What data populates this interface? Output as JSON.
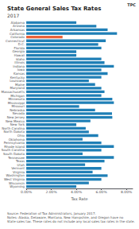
{
  "chart_data": {
    "type": "bar",
    "orientation": "horizontal",
    "title": "State General Sales Tax Rates",
    "subtitle": "2017",
    "xlabel": "Tax Rate",
    "categories": [
      "Alabama",
      "Arizona",
      "Arkansas",
      "California",
      "Colorado",
      "Connecticut",
      "D.C.",
      "Florida",
      "Georgia",
      "Hawaii",
      "Idaho",
      "Illinois",
      "Indiana",
      "Iowa",
      "Kansas",
      "Kentucky",
      "Louisiana",
      "Maine",
      "Maryland",
      "Massachusetts",
      "Michigan",
      "Minnesota",
      "Mississippi",
      "Missouri",
      "Nebraska",
      "Nevada",
      "New Jersey",
      "New Mexico",
      "New York",
      "North Carolina",
      "North Dakota",
      "Ohio",
      "Oklahoma",
      "Pennsylvania",
      "Rhode Island",
      "South Carolina",
      "South Dakota",
      "Tennessee",
      "Texas",
      "Utah",
      "Vermont",
      "Virginia",
      "Washington",
      "West Virginia",
      "Wisconsin",
      "Wyoming"
    ],
    "values": [
      4.0,
      5.6,
      6.5,
      7.25,
      2.9,
      6.35,
      5.75,
      6.0,
      4.0,
      4.0,
      6.0,
      6.25,
      7.0,
      6.0,
      6.5,
      6.0,
      5.0,
      5.5,
      6.0,
      6.25,
      6.0,
      6.875,
      7.0,
      4.225,
      5.5,
      6.85,
      6.875,
      5.125,
      4.0,
      4.75,
      5.0,
      5.75,
      4.5,
      6.0,
      7.0,
      6.0,
      4.5,
      7.0,
      6.25,
      4.7,
      6.0,
      5.3,
      6.5,
      6.0,
      5.0,
      4.0
    ],
    "colors": [
      "#1f7fb6",
      "#1f7fb6",
      "#1f7fb6",
      "#1f7fb6",
      "#e8623a",
      "#1f7fb6",
      "#1f7fb6",
      "#1f7fb6",
      "#1f7fb6",
      "#1f7fb6",
      "#1f7fb6",
      "#1f7fb6",
      "#1f7fb6",
      "#1f7fb6",
      "#1f7fb6",
      "#1f7fb6",
      "#1f7fb6",
      "#1f7fb6",
      "#1f7fb6",
      "#1f7fb6",
      "#1f7fb6",
      "#1f7fb6",
      "#1f7fb6",
      "#1f7fb6",
      "#1f7fb6",
      "#1f7fb6",
      "#1f7fb6",
      "#1f7fb6",
      "#1f7fb6",
      "#1f7fb6",
      "#1f7fb6",
      "#1f7fb6",
      "#1f7fb6",
      "#1f7fb6",
      "#1f7fb6",
      "#1f7fb6",
      "#1f7fb6",
      "#1f7fb6",
      "#1f7fb6",
      "#1f7fb6",
      "#1f7fb6",
      "#1f7fb6",
      "#1f7fb6",
      "#1f7fb6",
      "#1f7fb6",
      "#1f7fb6"
    ],
    "xlim": [
      0,
      8.5
    ],
    "xticks": [
      {
        "value": 0.0,
        "label": "0.00%"
      },
      {
        "value": 2.0,
        "label": "2.00%"
      },
      {
        "value": 4.0,
        "label": "4.00%"
      },
      {
        "value": 6.0,
        "label": "6.00%"
      },
      {
        "value": 8.0,
        "label": "8.00%"
      }
    ],
    "grid": false,
    "data_labels": false,
    "annotations": [
      "Source: Federation of Tax Administrators, January 2017.\nNotes: Alaska, Delaware, Montana, New Hampshire, and Oregon have no\nState sales tax. These rates do not include any local sales tax rates in the state.",
      "TPC"
    ]
  }
}
